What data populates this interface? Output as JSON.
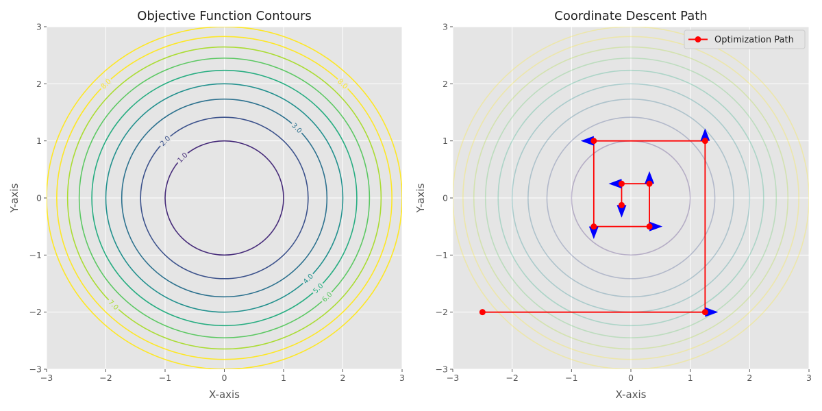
{
  "chart_data": [
    {
      "type": "contour",
      "title": "Objective Function Contours",
      "xlabel": "X-axis",
      "ylabel": "Y-axis",
      "xlim": [
        -3,
        3
      ],
      "ylim": [
        -3,
        3
      ],
      "xticks": [
        "−3",
        "−2",
        "−1",
        "0",
        "1",
        "2",
        "3"
      ],
      "yticks": [
        "−3",
        "−2",
        "−1",
        "0",
        "1",
        "2",
        "3"
      ],
      "grid": true,
      "levels": [
        1,
        2,
        3,
        4,
        5,
        6,
        7,
        8,
        9
      ],
      "level_colors": [
        "#472c7a",
        "#3b518b",
        "#2c718e",
        "#21908d",
        "#27ad81",
        "#5cc863",
        "#aadc32",
        "#fde725",
        "#fde725"
      ],
      "contour_labels": [
        {
          "text": "1.0",
          "level": 1,
          "angle_deg": 135
        },
        {
          "text": "2.0",
          "level": 2,
          "angle_deg": 135
        },
        {
          "text": "3.0",
          "level": 3,
          "angle_deg": 45
        },
        {
          "text": "4.0",
          "level": 4,
          "angle_deg": -45
        },
        {
          "text": "5.0",
          "level": 5,
          "angle_deg": -45
        },
        {
          "text": "6.0",
          "level": 6,
          "angle_deg": -45
        },
        {
          "text": "7.0",
          "level": 7,
          "angle_deg": -135
        },
        {
          "text": "8.0",
          "level": 8,
          "angle_deg": 135
        },
        {
          "text": "8.0",
          "level": 8,
          "angle_deg": 45
        }
      ]
    },
    {
      "type": "line",
      "title": "Coordinate Descent Path",
      "xlabel": "X-axis",
      "ylabel": "Y-axis",
      "xlim": [
        -3,
        3
      ],
      "ylim": [
        -3,
        3
      ],
      "xticks": [
        "−3",
        "−2",
        "−1",
        "0",
        "1",
        "2",
        "3"
      ],
      "yticks": [
        "−3",
        "−2",
        "−1",
        "0",
        "1",
        "2",
        "3"
      ],
      "grid": true,
      "background_levels": [
        1,
        2,
        3,
        4,
        5,
        6,
        7,
        8,
        9
      ],
      "legend": {
        "entries": [
          "Optimization Path"
        ],
        "placement": "top-right"
      },
      "series": [
        {
          "name": "Optimization Path",
          "color": "#ff0000",
          "points": [
            [
              -2.5,
              -2.0
            ],
            [
              1.25,
              -2.0
            ],
            [
              1.25,
              1.0
            ],
            [
              -0.625,
              1.0
            ],
            [
              -0.625,
              -0.5
            ],
            [
              0.3125,
              -0.5
            ],
            [
              0.3125,
              0.25
            ],
            [
              -0.15625,
              0.25
            ],
            [
              -0.15625,
              -0.125
            ]
          ]
        }
      ],
      "arrows": [
        {
          "x": 1.25,
          "y": -2.0,
          "dx": 0.22,
          "dy": 0
        },
        {
          "x": 1.25,
          "y": 1.0,
          "dx": 0,
          "dy": 0.22
        },
        {
          "x": -0.625,
          "y": 1.0,
          "dx": -0.22,
          "dy": 0
        },
        {
          "x": -0.625,
          "y": -0.5,
          "dx": 0,
          "dy": -0.22
        },
        {
          "x": 0.3125,
          "y": -0.5,
          "dx": 0.22,
          "dy": 0
        },
        {
          "x": 0.3125,
          "y": 0.25,
          "dx": 0,
          "dy": 0.22
        },
        {
          "x": -0.15625,
          "y": 0.25,
          "dx": -0.22,
          "dy": 0
        },
        {
          "x": -0.15625,
          "y": -0.125,
          "dx": 0,
          "dy": -0.22
        }
      ],
      "arrow_color": "#0000ff"
    }
  ]
}
